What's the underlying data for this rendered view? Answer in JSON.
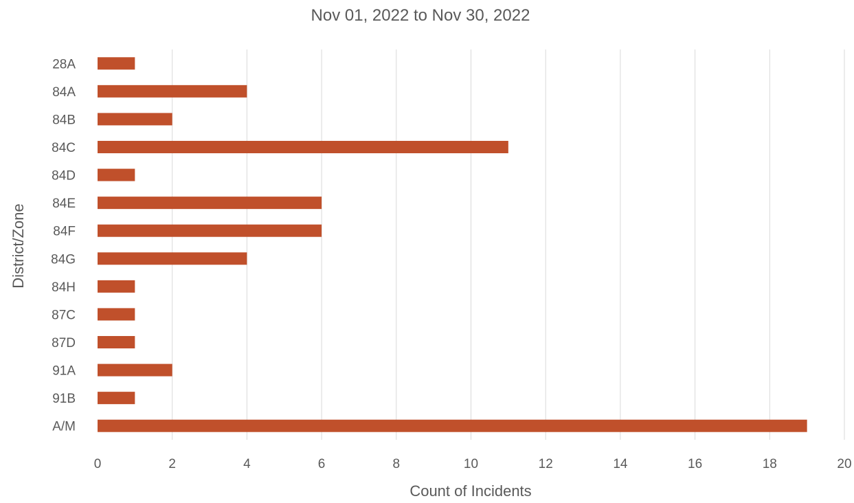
{
  "chart_data": {
    "type": "bar",
    "orientation": "horizontal",
    "title": "Nov 01, 2022 to Nov 30, 2022",
    "xlabel": "Count of Incidents",
    "ylabel": "District/Zone",
    "categories": [
      "28A",
      "84A",
      "84B",
      "84C",
      "84D",
      "84E",
      "84F",
      "84G",
      "84H",
      "87C",
      "87D",
      "91A",
      "91B",
      "A/M"
    ],
    "values": [
      1,
      4,
      2,
      11,
      1,
      6,
      6,
      4,
      1,
      1,
      1,
      2,
      1,
      19
    ],
    "xlim": [
      0,
      20
    ],
    "xticks": [
      0,
      2,
      4,
      6,
      8,
      10,
      12,
      14,
      16,
      18,
      20
    ],
    "grid": "vertical",
    "legend": "none",
    "bar_color": "#c0502b",
    "grid_color": "#d9d9d9",
    "text_color": "#595959"
  }
}
